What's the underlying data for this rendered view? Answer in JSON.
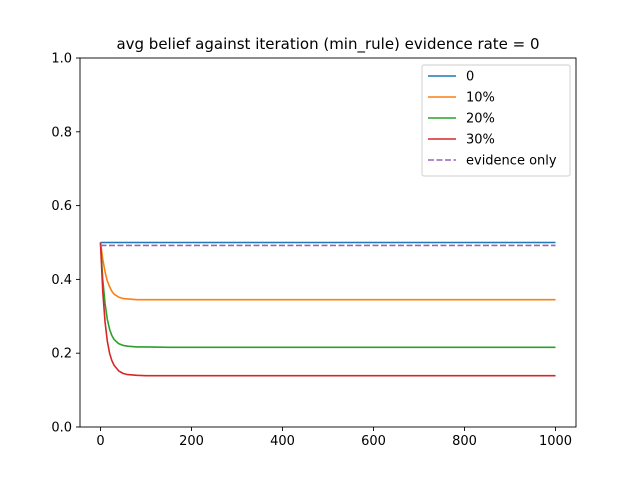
{
  "chart_data": {
    "type": "line",
    "title": "avg belief against iteration (min_rule) evidence rate = 0",
    "xlabel": "",
    "ylabel": "",
    "xlim": [
      -45,
      1045
    ],
    "ylim": [
      0.0,
      1.0
    ],
    "xticks": [
      0,
      200,
      400,
      600,
      800,
      1000
    ],
    "yticks": [
      0.0,
      0.2,
      0.4,
      0.6,
      0.8,
      1.0
    ],
    "xtick_labels": [
      "0",
      "200",
      "400",
      "600",
      "800",
      "1000"
    ],
    "ytick_labels": [
      "0.0",
      "0.2",
      "0.4",
      "0.6",
      "0.8",
      "1.0"
    ],
    "grid": false,
    "legend_position": "top-right",
    "series": [
      {
        "name": "0",
        "color": "#1f77b4",
        "style": "solid",
        "x": [
          0,
          10,
          20,
          30,
          50,
          100,
          150,
          200,
          400,
          600,
          800,
          1000
        ],
        "y": [
          0.5,
          0.5,
          0.5,
          0.5,
          0.5,
          0.5,
          0.5,
          0.5,
          0.5,
          0.5,
          0.5,
          0.5
        ]
      },
      {
        "name": "10%",
        "color": "#ff7f0e",
        "style": "solid",
        "x": [
          0,
          5,
          10,
          15,
          20,
          25,
          30,
          40,
          50,
          60,
          70,
          80,
          100,
          150,
          200,
          400,
          600,
          800,
          1000
        ],
        "y": [
          0.5,
          0.455,
          0.421,
          0.396,
          0.38,
          0.368,
          0.36,
          0.352,
          0.348,
          0.347,
          0.346,
          0.345,
          0.345,
          0.345,
          0.345,
          0.345,
          0.345,
          0.345,
          0.345
        ]
      },
      {
        "name": "20%",
        "color": "#2ca02c",
        "style": "solid",
        "x": [
          0,
          5,
          10,
          15,
          20,
          25,
          30,
          40,
          50,
          60,
          70,
          80,
          100,
          150,
          200,
          400,
          600,
          800,
          1000
        ],
        "y": [
          0.5,
          0.4,
          0.335,
          0.292,
          0.265,
          0.248,
          0.237,
          0.226,
          0.221,
          0.219,
          0.218,
          0.217,
          0.217,
          0.216,
          0.216,
          0.216,
          0.216,
          0.216,
          0.216
        ]
      },
      {
        "name": "30%",
        "color": "#d62728",
        "style": "solid",
        "x": [
          0,
          5,
          10,
          15,
          20,
          25,
          30,
          40,
          50,
          60,
          70,
          80,
          100,
          150,
          200,
          400,
          600,
          800,
          1000
        ],
        "y": [
          0.5,
          0.368,
          0.285,
          0.233,
          0.2,
          0.18,
          0.167,
          0.152,
          0.145,
          0.142,
          0.141,
          0.14,
          0.139,
          0.139,
          0.139,
          0.139,
          0.139,
          0.139,
          0.139
        ]
      },
      {
        "name": "evidence only",
        "color": "#9467bd",
        "style": "dashed",
        "x": [
          0,
          1000
        ],
        "y": [
          0.492,
          0.492
        ]
      }
    ]
  }
}
